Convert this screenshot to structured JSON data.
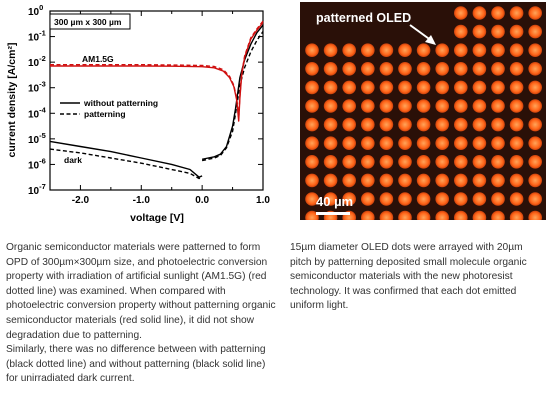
{
  "chart_data": {
    "type": "line",
    "xlabel": "voltage [V]",
    "ylabel": "current density [A/cm²]",
    "xlim": [
      -2.5,
      1.0
    ],
    "ylim_log10": [
      -7,
      0
    ],
    "y_scale": "log",
    "x_ticks": [
      "-2.0",
      "-1.0",
      "0.0",
      "1.0"
    ],
    "y_ticks": [
      {
        "base": "10",
        "exp": "0"
      },
      {
        "base": "10",
        "exp": "-1"
      },
      {
        "base": "10",
        "exp": "-2"
      },
      {
        "base": "10",
        "exp": "-3"
      },
      {
        "base": "10",
        "exp": "-4"
      },
      {
        "base": "10",
        "exp": "-5"
      },
      {
        "base": "10",
        "exp": "-6"
      },
      {
        "base": "10",
        "exp": "-7"
      }
    ],
    "boxed_label": "300 µm x 300 µm",
    "annotations": {
      "illuminated": "AM1.5G",
      "dark": "dark"
    },
    "legend": {
      "placement": "center-right",
      "entries": [
        {
          "label": "without patterning",
          "style": "solid"
        },
        {
          "label": "patterning",
          "style": "dashed"
        }
      ]
    },
    "series": [
      {
        "color": "#000000",
        "style": "solid",
        "points": [
          [
            -2.5,
            -5.1
          ],
          [
            -2.0,
            -5.3
          ],
          [
            -1.5,
            -5.5
          ],
          [
            -1.0,
            -5.75
          ],
          [
            -0.5,
            -6.0
          ],
          [
            -0.2,
            -6.2
          ],
          [
            -0.05,
            -6.5
          ],
          [
            0.0,
            -6.45
          ]
        ]
      },
      {
        "color": "#000000",
        "style": "solid",
        "points": [
          [
            0.0,
            -5.8
          ],
          [
            0.1,
            -5.75
          ],
          [
            0.2,
            -5.7
          ],
          [
            0.3,
            -5.6
          ],
          [
            0.4,
            -5.3
          ],
          [
            0.5,
            -4.5
          ],
          [
            0.55,
            -3.8
          ],
          [
            0.62,
            -2.6
          ],
          [
            0.7,
            -1.9
          ],
          [
            0.8,
            -1.3
          ],
          [
            0.9,
            -0.85
          ],
          [
            1.0,
            -0.55
          ]
        ]
      },
      {
        "color": "#000000",
        "style": "dashed",
        "points": [
          [
            -2.5,
            -5.4
          ],
          [
            -2.0,
            -5.55
          ],
          [
            -1.5,
            -5.75
          ],
          [
            -1.0,
            -5.95
          ],
          [
            -0.5,
            -6.2
          ],
          [
            -0.2,
            -6.35
          ],
          [
            -0.05,
            -6.55
          ],
          [
            0.0,
            -6.5
          ]
        ]
      },
      {
        "color": "#000000",
        "style": "dashed",
        "points": [
          [
            0.0,
            -5.85
          ],
          [
            0.1,
            -5.8
          ],
          [
            0.2,
            -5.75
          ],
          [
            0.3,
            -5.65
          ],
          [
            0.4,
            -5.35
          ],
          [
            0.5,
            -4.7
          ],
          [
            0.55,
            -4.0
          ],
          [
            0.62,
            -2.9
          ],
          [
            0.7,
            -2.2
          ],
          [
            0.8,
            -1.6
          ],
          [
            0.9,
            -1.15
          ],
          [
            1.0,
            -0.8
          ]
        ]
      },
      {
        "color": "#d01010",
        "style": "solid",
        "points": [
          [
            -2.5,
            -2.15
          ],
          [
            -2.0,
            -2.15
          ],
          [
            -1.5,
            -2.15
          ],
          [
            -1.0,
            -2.15
          ],
          [
            -0.5,
            -2.16
          ],
          [
            0.0,
            -2.18
          ],
          [
            0.2,
            -2.22
          ],
          [
            0.35,
            -2.35
          ],
          [
            0.45,
            -2.6
          ],
          [
            0.52,
            -2.95
          ],
          [
            0.57,
            -3.5
          ],
          [
            0.6,
            -4.3
          ],
          [
            0.62,
            -3.4
          ],
          [
            0.65,
            -2.5
          ],
          [
            0.7,
            -1.8
          ],
          [
            0.8,
            -1.1
          ],
          [
            0.9,
            -0.75
          ],
          [
            1.0,
            -0.45
          ]
        ]
      },
      {
        "color": "#d01010",
        "style": "dashed",
        "points": [
          [
            -2.5,
            -2.1
          ],
          [
            -2.0,
            -2.1
          ],
          [
            -1.5,
            -2.1
          ],
          [
            -1.0,
            -2.1
          ],
          [
            -0.5,
            -2.11
          ],
          [
            0.0,
            -2.13
          ],
          [
            0.2,
            -2.17
          ],
          [
            0.35,
            -2.3
          ],
          [
            0.45,
            -2.55
          ],
          [
            0.52,
            -2.9
          ],
          [
            0.57,
            -3.45
          ],
          [
            0.6,
            -4.2
          ],
          [
            0.62,
            -3.3
          ],
          [
            0.65,
            -2.45
          ],
          [
            0.7,
            -1.75
          ],
          [
            0.8,
            -1.05
          ],
          [
            0.9,
            -0.7
          ],
          [
            1.0,
            -0.4
          ]
        ]
      }
    ]
  },
  "micrograph": {
    "title": "patterned OLED",
    "scale_label": "40 µm",
    "dot_color": "#ff6418",
    "dot_core_color": "#ffa55a",
    "background_color": "#2a1008"
  },
  "captions": {
    "left": "Organic semiconductor materials were patterned to form OPD of 300µm×300µm size, and photoelectric conversion property with irradiation of artificial sunlight (AM1.5G) (red dotted line) was examined. When compared with photoelectric conversion property without patterning organic semiconductor materials (red solid line), it did not show degradation due to patterning.\nSimilarly, there was no difference between with patterning (black dotted line) and without patterning (black solid line) for unirradiated dark current.",
    "right": "15µm diameter OLED dots were arrayed with 20µm pitch by patterning deposited small molecule organic semiconductor materials with the new photoresist technology. It was confirmed that each dot emitted uniform light."
  }
}
